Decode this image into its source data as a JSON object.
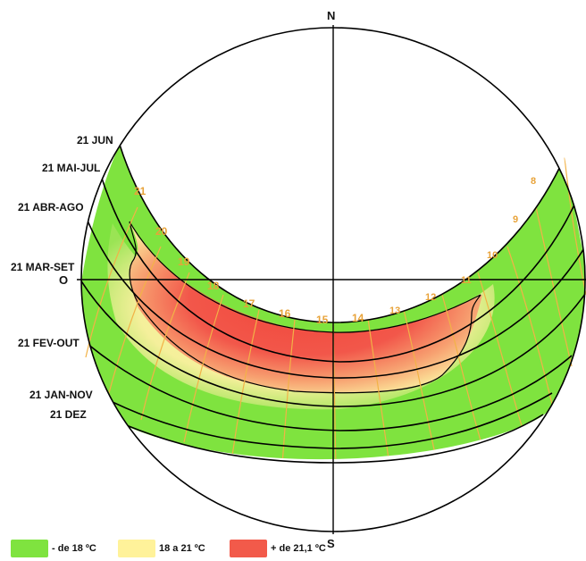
{
  "compass": {
    "north": "N",
    "south": "S",
    "west": "O"
  },
  "sun_paths": [
    {
      "label": "21 JUN"
    },
    {
      "label": "21 MAI-JUL"
    },
    {
      "label": "21 ABR-AGO"
    },
    {
      "label": "21 MAR-SET"
    },
    {
      "label": "21 FEV-OUT"
    },
    {
      "label": "21 JAN-NOV"
    },
    {
      "label": "21 DEZ"
    }
  ],
  "hours": [
    "8",
    "9",
    "10",
    "11",
    "12",
    "13",
    "14",
    "15",
    "16",
    "17",
    "18",
    "19",
    "20",
    "21"
  ],
  "legend": [
    {
      "label": "- de 18 ºC",
      "color": "#7fe33f"
    },
    {
      "label": "18 a 21 ºC",
      "color": "#fff29a"
    },
    {
      "label": "+ de 21,1 ºC",
      "color": "#f25a4a"
    }
  ],
  "colors": {
    "hour_lines": "#f2b247",
    "outline": "#000000"
  }
}
